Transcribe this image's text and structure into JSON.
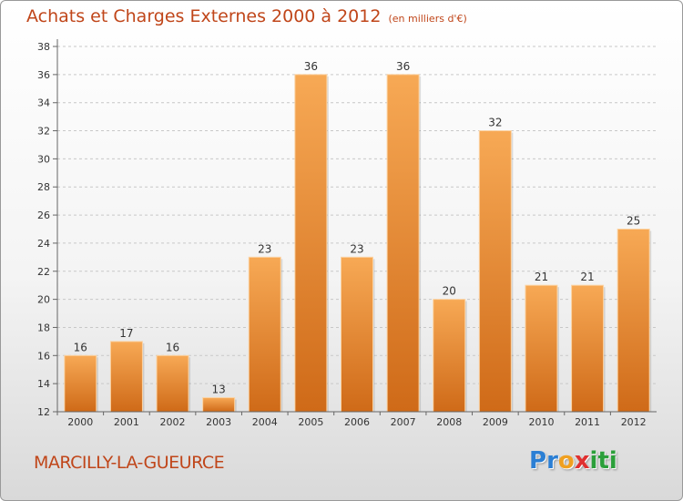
{
  "header": {
    "title": "Achats et Charges Externes 2000 à 2012",
    "unit": "(en milliers d'€)"
  },
  "footer": {
    "city": "MARCILLY-LA-GUEURCE",
    "brand_letters": [
      {
        "char": "P",
        "color": "#2b7fd4"
      },
      {
        "char": "r",
        "color": "#2b7fd4"
      },
      {
        "char": "o",
        "color": "#f0a020"
      },
      {
        "char": "x",
        "color": "#e03030"
      },
      {
        "char": "i",
        "color": "#2b9f3a"
      },
      {
        "char": "t",
        "color": "#2b9f3a"
      },
      {
        "char": "i",
        "color": "#2b9f3a"
      }
    ]
  },
  "colors": {
    "bar_light": "#f7a955",
    "bar_dark": "#cf6a18",
    "accent": "#c0461a"
  },
  "chart_data": {
    "type": "bar",
    "title": "Achats et Charges Externes 2000 à 2012",
    "subtitle": "(en milliers d'€)",
    "xlabel": "",
    "ylabel": "",
    "categories": [
      "2000",
      "2001",
      "2002",
      "2003",
      "2004",
      "2005",
      "2006",
      "2007",
      "2008",
      "2009",
      "2010",
      "2011",
      "2012"
    ],
    "values": [
      16,
      17,
      16,
      13,
      23,
      36,
      23,
      36,
      20,
      32,
      21,
      21,
      25
    ],
    "ylim": [
      12,
      38
    ],
    "yticks": [
      12,
      14,
      16,
      18,
      20,
      22,
      24,
      26,
      28,
      30,
      32,
      34,
      36,
      38
    ],
    "grid": true,
    "legend": "none"
  }
}
